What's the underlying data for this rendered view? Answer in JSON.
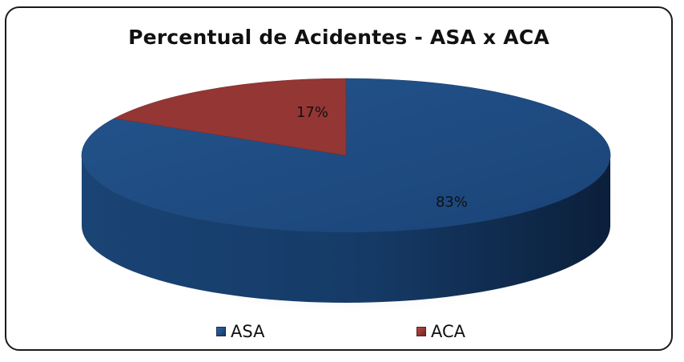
{
  "chart_data": {
    "type": "pie",
    "title": "Percentual de Acidentes - ASA x ACA",
    "categories": [
      "ASA",
      "ACA"
    ],
    "values": [
      83,
      17
    ],
    "labels": [
      "83%",
      "17%"
    ],
    "colors": [
      "#1F4E85",
      "#943634"
    ],
    "style": "3d",
    "legend_placement": "bottom"
  }
}
